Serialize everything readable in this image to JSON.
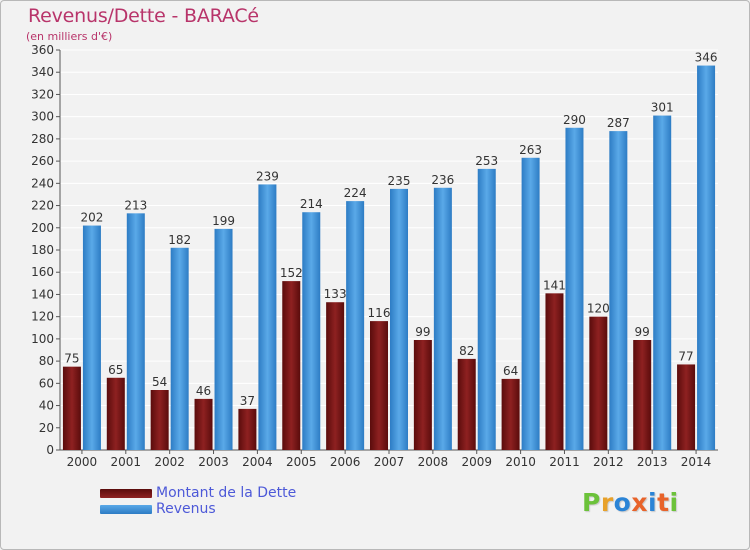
{
  "title": "Revenus/Dette - BARACé",
  "subtitle": "(en milliers d'€)",
  "logo": {
    "text": "Proxiti",
    "letters": [
      "P",
      "r",
      "o",
      "x",
      "i",
      "t",
      "i"
    ],
    "colors": [
      "#6cc23a",
      "#e8a12a",
      "#2b84d6",
      "#e8632a",
      "#2b84d6",
      "#e8632a",
      "#6cc23a"
    ]
  },
  "colors": {
    "dette": "#8b1a1a",
    "revenus": "#3d8fd8"
  },
  "chart_data": {
    "type": "bar",
    "title": "Revenus/Dette - BARACé",
    "subtitle": "(en milliers d'€)",
    "categories": [
      "2000",
      "2001",
      "2002",
      "2003",
      "2004",
      "2005",
      "2006",
      "2007",
      "2008",
      "2009",
      "2010",
      "2011",
      "2012",
      "2013",
      "2014"
    ],
    "series": [
      {
        "name": "Montant de la Dette",
        "values": [
          75,
          65,
          54,
          46,
          37,
          152,
          133,
          116,
          99,
          82,
          64,
          141,
          120,
          99,
          77
        ]
      },
      {
        "name": "Revenus",
        "values": [
          202,
          213,
          182,
          199,
          239,
          214,
          224,
          235,
          236,
          253,
          263,
          290,
          287,
          301,
          346
        ]
      }
    ],
    "ylim": [
      0,
      360
    ],
    "yticks": [
      0,
      20,
      40,
      60,
      80,
      100,
      120,
      140,
      160,
      180,
      200,
      220,
      240,
      260,
      280,
      300,
      320,
      340,
      360
    ],
    "grid": true,
    "legend": "bottom-left"
  }
}
